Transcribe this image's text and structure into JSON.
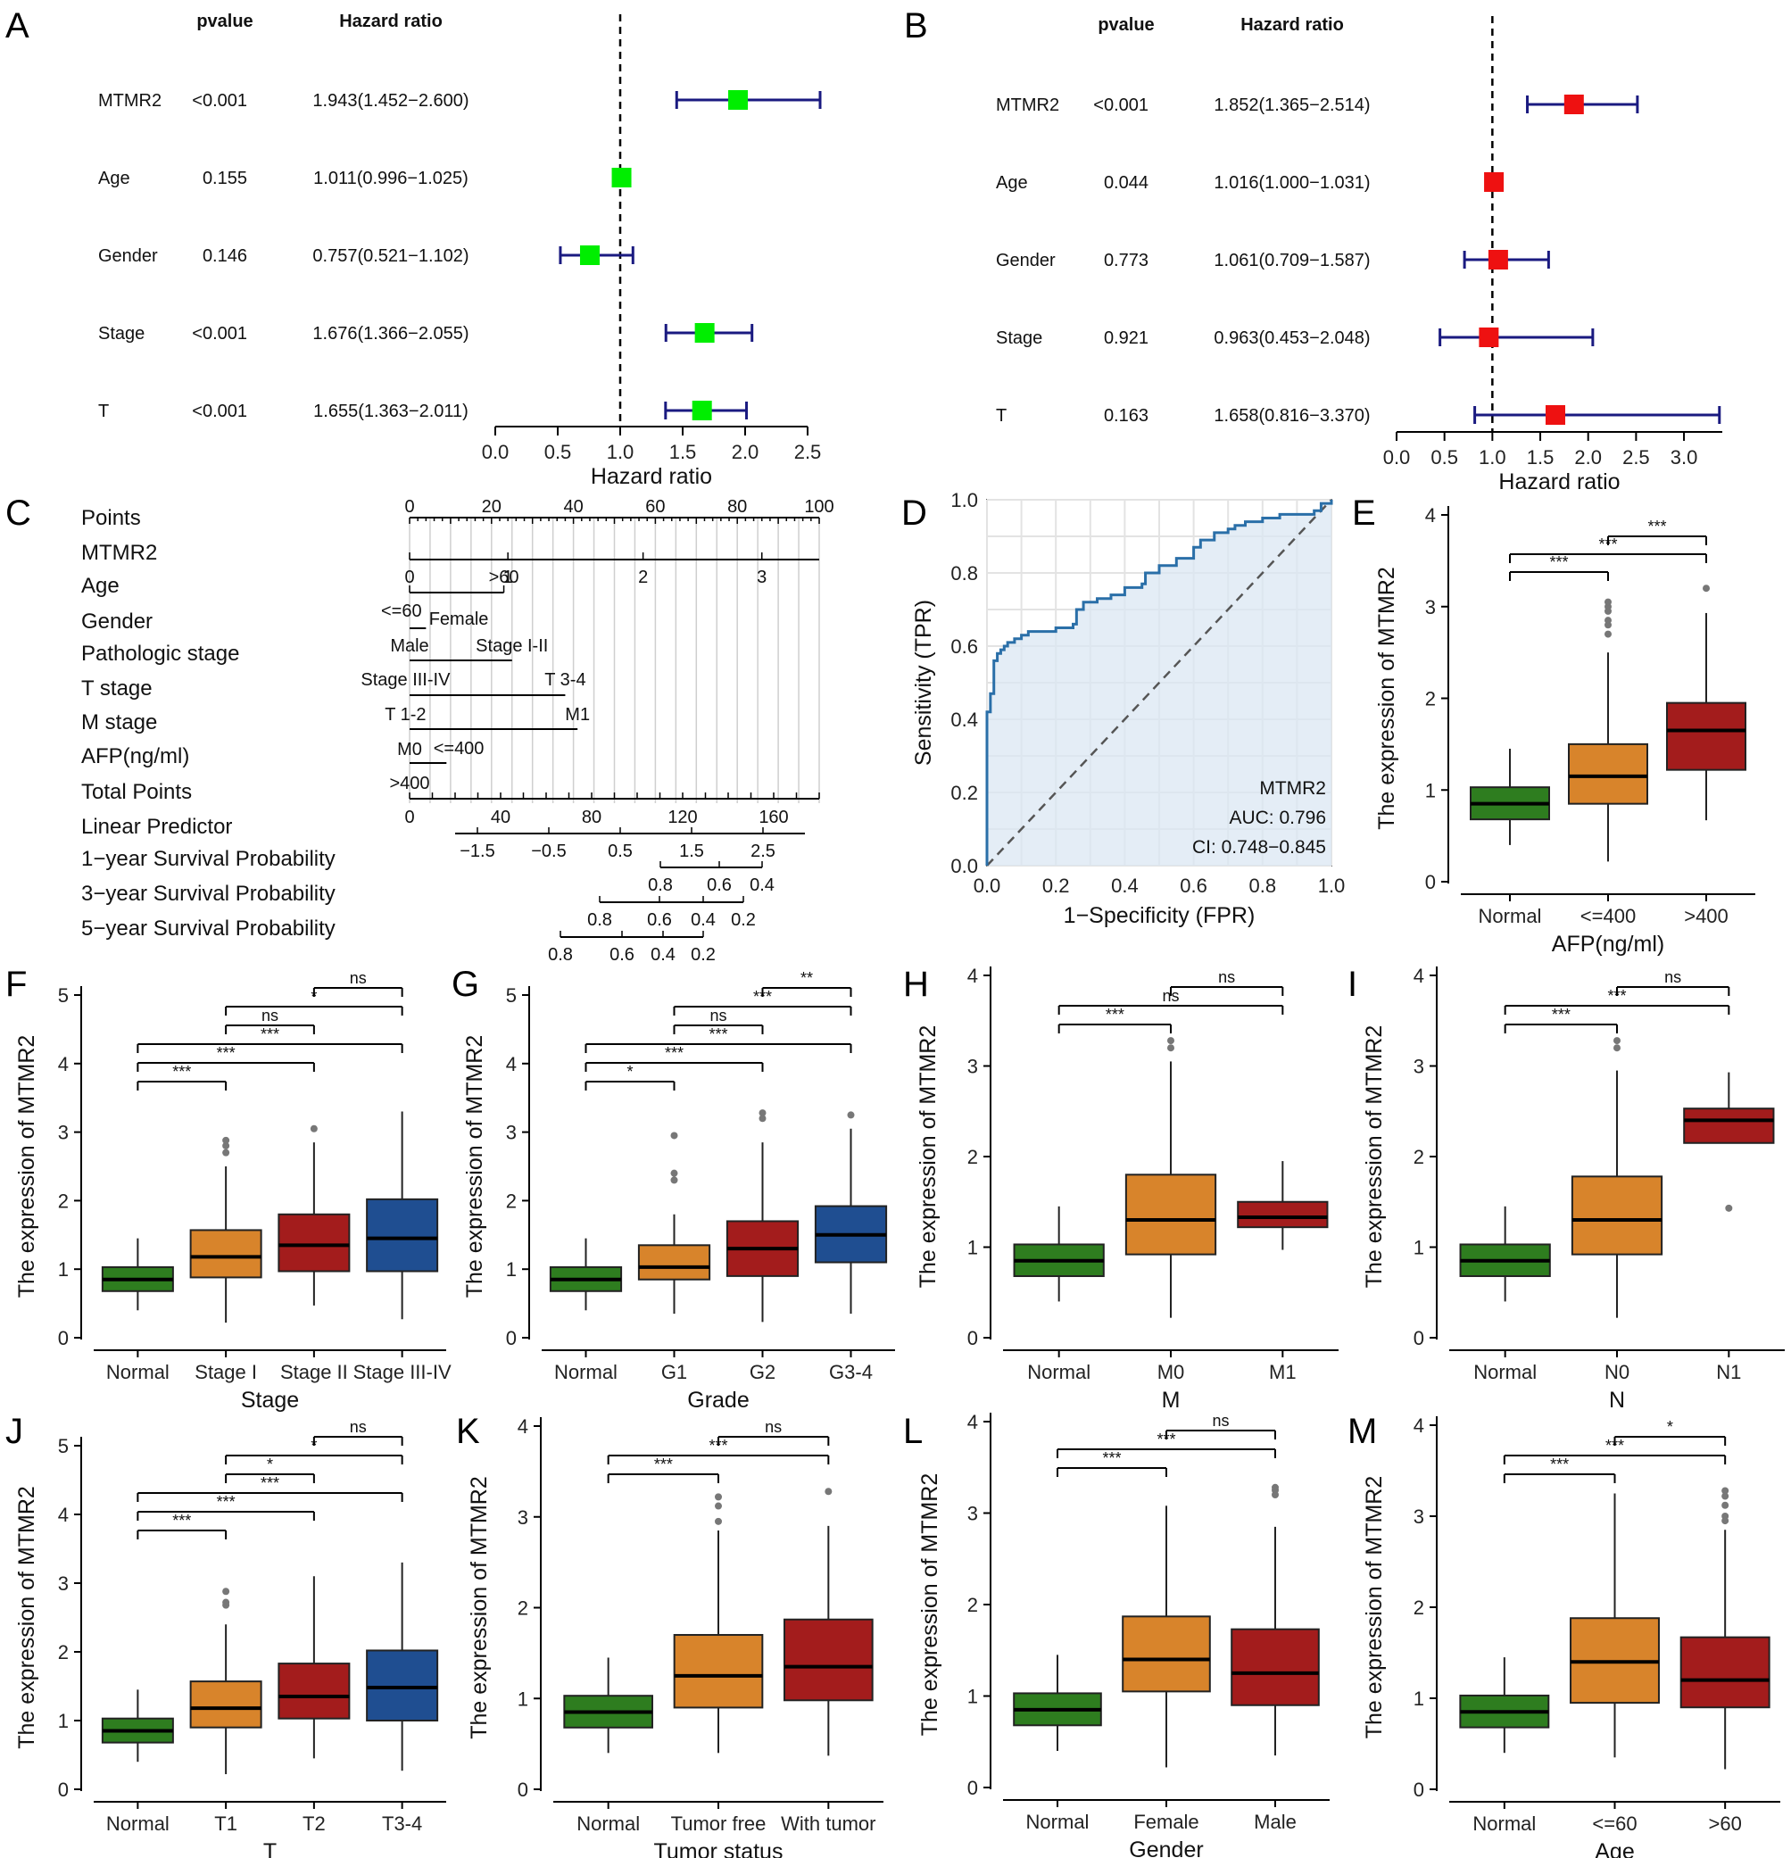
{
  "colors": {
    "forest_marker": "#00ee00",
    "forest_marker_b": "#ee1111",
    "ci_line": "#1a1a80",
    "box_normal": "#2e7d1f",
    "box_orange": "#d8842b",
    "box_red": "#a31c1c",
    "box_blue": "#1f4e91",
    "roc_line": "#2a6fa8",
    "roc_fill": "#dbe7f3"
  },
  "chart_data": [
    {
      "panel": "A",
      "type": "forest",
      "header": {
        "pvalue": "pvalue",
        "hr": "Hazard ratio"
      },
      "xlabel": "Hazard ratio",
      "ticks": [
        0.0,
        0.5,
        1.0,
        1.5,
        2.0,
        2.5
      ],
      "tick_labels": [
        "0.0",
        "0.5",
        "1.0",
        "1.5",
        "2.0",
        "2.5"
      ],
      "xlim": [
        0,
        2.5
      ],
      "ref": 1.0,
      "rows": [
        {
          "name": "MTMR2",
          "p": "<0.001",
          "text": "1.943(1.452−2.600)",
          "hr": 1.943,
          "lo": 1.452,
          "hi": 2.6
        },
        {
          "name": "Age",
          "p": "0.155",
          "text": "1.011(0.996−1.025)",
          "hr": 1.011,
          "lo": 0.996,
          "hi": 1.025
        },
        {
          "name": "Gender",
          "p": "0.146",
          "text": "0.757(0.521−1.102)",
          "hr": 0.757,
          "lo": 0.521,
          "hi": 1.102
        },
        {
          "name": "Stage",
          "p": "<0.001",
          "text": "1.676(1.366−2.055)",
          "hr": 1.676,
          "lo": 1.366,
          "hi": 2.055
        },
        {
          "name": "T",
          "p": "<0.001",
          "text": "1.655(1.363−2.011)",
          "hr": 1.655,
          "lo": 1.363,
          "hi": 2.011
        }
      ]
    },
    {
      "panel": "B",
      "type": "forest",
      "header": {
        "pvalue": "pvalue",
        "hr": "Hazard ratio"
      },
      "xlabel": "Hazard ratio",
      "ticks": [
        0.0,
        0.5,
        1.0,
        1.5,
        2.0,
        2.5,
        3.0
      ],
      "tick_labels": [
        "0.0",
        "0.5",
        "1.0",
        "1.5",
        "2.0",
        "2.5",
        "3.0"
      ],
      "xlim": [
        0,
        3.4
      ],
      "ref": 1.0,
      "rows": [
        {
          "name": "MTMR2",
          "p": "<0.001",
          "text": "1.852(1.365−2.514)",
          "hr": 1.852,
          "lo": 1.365,
          "hi": 2.514
        },
        {
          "name": "Age",
          "p": "0.044",
          "text": "1.016(1.000−1.031)",
          "hr": 1.016,
          "lo": 1.0,
          "hi": 1.031
        },
        {
          "name": "Gender",
          "p": "0.773",
          "text": "1.061(0.709−1.587)",
          "hr": 1.061,
          "lo": 0.709,
          "hi": 1.587
        },
        {
          "name": "Stage",
          "p": "0.921",
          "text": "0.963(0.453−2.048)",
          "hr": 0.963,
          "lo": 0.453,
          "hi": 2.048
        },
        {
          "name": "T",
          "p": "0.163",
          "text": "1.658(0.816−3.370)",
          "hr": 1.658,
          "lo": 0.816,
          "hi": 3.37
        }
      ]
    },
    {
      "panel": "C",
      "type": "nomogram",
      "rows": [
        "Points",
        "MTMR2",
        "Age",
        "Gender",
        "Pathologic stage",
        "T stage",
        "M stage",
        "AFP(ng/ml)",
        "Total Points",
        "Linear Predictor",
        "1−year Survival Probability",
        "3−year Survival Probability",
        "5−year Survival Probability"
      ],
      "points_ticks": [
        "0",
        "20",
        "40",
        "60",
        "80",
        "100"
      ],
      "mtmr2_ticks": [
        "0",
        "1",
        "2",
        "3"
      ],
      "age_labels": [
        ">60",
        "<=60"
      ],
      "gender_labels": [
        "Female",
        "Male"
      ],
      "stage_labels": [
        "Stage I-II",
        "Stage III-IV"
      ],
      "t_labels": [
        "T 3-4",
        "T 1-2"
      ],
      "m_labels": [
        "M1",
        "M0"
      ],
      "afp_labels": [
        "<=400",
        ">400"
      ],
      "total_ticks": [
        "0",
        "40",
        "80",
        "120",
        "160"
      ],
      "lp_ticks": [
        "−1.5",
        "−0.5",
        "0.5",
        "1.5",
        "2.5"
      ],
      "surv1_ticks": [
        "0.8",
        "0.6",
        "0.4"
      ],
      "surv3_ticks": [
        "0.8",
        "0.6",
        "0.4",
        "0.2"
      ],
      "surv5_ticks": [
        "0.8",
        "0.6",
        "0.4",
        "0.2"
      ]
    },
    {
      "panel": "D",
      "type": "roc",
      "xlabel": "1−Specificity (FPR)",
      "ylabel": "Sensitivity (TPR)",
      "ticks": [
        "0.0",
        "0.2",
        "0.4",
        "0.6",
        "0.8",
        "1.0"
      ],
      "label": "MTMR2",
      "auc": "AUC: 0.796",
      "ci": "CI: 0.748−0.845",
      "fpr": [
        0,
        0,
        0.01,
        0.01,
        0.02,
        0.02,
        0.03,
        0.04,
        0.05,
        0.06,
        0.08,
        0.1,
        0.12,
        0.15,
        0.2,
        0.25,
        0.26,
        0.28,
        0.32,
        0.36,
        0.4,
        0.45,
        0.46,
        0.5,
        0.55,
        0.6,
        0.62,
        0.66,
        0.7,
        0.72,
        0.75,
        0.8,
        0.85,
        0.9,
        0.95,
        0.97,
        1.0
      ],
      "tpr": [
        0,
        0.42,
        0.42,
        0.47,
        0.52,
        0.56,
        0.58,
        0.59,
        0.6,
        0.61,
        0.62,
        0.63,
        0.64,
        0.64,
        0.65,
        0.66,
        0.7,
        0.72,
        0.73,
        0.74,
        0.76,
        0.77,
        0.8,
        0.82,
        0.84,
        0.87,
        0.89,
        0.91,
        0.92,
        0.93,
        0.94,
        0.95,
        0.96,
        0.96,
        0.97,
        0.99,
        1.0
      ]
    },
    {
      "panel": "E",
      "type": "box",
      "xlabel": "AFP(ng/ml)",
      "ylabel": "The expression of MTMR2",
      "ylim": [
        0,
        4
      ],
      "yticks": [
        0,
        1,
        2,
        3,
        4
      ],
      "categories": [
        "Normal",
        "<=400",
        ">400"
      ],
      "boxes": [
        {
          "wlo": 0.4,
          "q1": 0.68,
          "med": 0.85,
          "q3": 1.03,
          "whi": 1.45,
          "out": []
        },
        {
          "wlo": 0.22,
          "q1": 0.85,
          "med": 1.15,
          "q3": 1.5,
          "whi": 2.5,
          "out": [
            2.7,
            2.8,
            2.85,
            2.95,
            3.0,
            3.05
          ]
        },
        {
          "wlo": 0.67,
          "q1": 1.22,
          "med": 1.65,
          "q3": 1.95,
          "whi": 2.93,
          "out": [
            3.2
          ]
        }
      ],
      "sig": [
        {
          "a": 0,
          "b": 1,
          "label": "***"
        },
        {
          "a": 0,
          "b": 2,
          "label": "***"
        },
        {
          "a": 1,
          "b": 2,
          "label": "***"
        }
      ]
    },
    {
      "panel": "F",
      "type": "box",
      "xlabel": "Stage",
      "ylabel": "The expression of MTMR2",
      "ylim": [
        0,
        5
      ],
      "yticks": [
        0,
        1,
        2,
        3,
        4,
        5
      ],
      "categories": [
        "Normal",
        "Stage I",
        "Stage II",
        "Stage III-IV"
      ],
      "boxes": [
        {
          "wlo": 0.4,
          "q1": 0.68,
          "med": 0.85,
          "q3": 1.03,
          "whi": 1.45,
          "out": []
        },
        {
          "wlo": 0.22,
          "q1": 0.88,
          "med": 1.18,
          "q3": 1.57,
          "whi": 2.5,
          "out": [
            2.7,
            2.8,
            2.88
          ]
        },
        {
          "wlo": 0.47,
          "q1": 0.97,
          "med": 1.35,
          "q3": 1.8,
          "whi": 2.85,
          "out": [
            3.05
          ]
        },
        {
          "wlo": 0.27,
          "q1": 0.97,
          "med": 1.45,
          "q3": 2.02,
          "whi": 3.3,
          "out": []
        }
      ],
      "sig": [
        {
          "a": 0,
          "b": 1,
          "label": "***"
        },
        {
          "a": 0,
          "b": 2,
          "label": "***"
        },
        {
          "a": 0,
          "b": 3,
          "label": "***"
        },
        {
          "a": 1,
          "b": 2,
          "label": "ns"
        },
        {
          "a": 1,
          "b": 3,
          "label": "*"
        },
        {
          "a": 2,
          "b": 3,
          "label": "ns"
        }
      ]
    },
    {
      "panel": "G",
      "type": "box",
      "xlabel": "Grade",
      "ylabel": "The expression of MTMR2",
      "ylim": [
        0,
        5
      ],
      "yticks": [
        0,
        1,
        2,
        3,
        4,
        5
      ],
      "categories": [
        "Normal",
        "G1",
        "G2",
        "G3-4"
      ],
      "boxes": [
        {
          "wlo": 0.4,
          "q1": 0.68,
          "med": 0.85,
          "q3": 1.03,
          "whi": 1.45,
          "out": []
        },
        {
          "wlo": 0.35,
          "q1": 0.85,
          "med": 1.03,
          "q3": 1.35,
          "whi": 1.8,
          "out": [
            2.3,
            2.4,
            2.95
          ]
        },
        {
          "wlo": 0.23,
          "q1": 0.9,
          "med": 1.3,
          "q3": 1.7,
          "whi": 2.85,
          "out": [
            3.2,
            3.28
          ]
        },
        {
          "wlo": 0.35,
          "q1": 1.1,
          "med": 1.5,
          "q3": 1.92,
          "whi": 3.05,
          "out": [
            3.25
          ]
        }
      ],
      "sig": [
        {
          "a": 0,
          "b": 1,
          "label": "*"
        },
        {
          "a": 0,
          "b": 2,
          "label": "***"
        },
        {
          "a": 0,
          "b": 3,
          "label": "***"
        },
        {
          "a": 1,
          "b": 2,
          "label": "ns"
        },
        {
          "a": 1,
          "b": 3,
          "label": "***"
        },
        {
          "a": 2,
          "b": 3,
          "label": "**"
        }
      ]
    },
    {
      "panel": "H",
      "type": "box",
      "xlabel": "M",
      "ylabel": "The expression of MTMR2",
      "ylim": [
        0,
        4
      ],
      "yticks": [
        0,
        1,
        2,
        3,
        4
      ],
      "categories": [
        "Normal",
        "M0",
        "M1"
      ],
      "boxes": [
        {
          "wlo": 0.4,
          "q1": 0.68,
          "med": 0.85,
          "q3": 1.03,
          "whi": 1.45,
          "out": []
        },
        {
          "wlo": 0.22,
          "q1": 0.92,
          "med": 1.3,
          "q3": 1.8,
          "whi": 3.05,
          "out": [
            3.2,
            3.28
          ]
        },
        {
          "wlo": 0.97,
          "q1": 1.22,
          "med": 1.33,
          "q3": 1.5,
          "whi": 1.95,
          "out": []
        }
      ],
      "sig": [
        {
          "a": 0,
          "b": 1,
          "label": "***"
        },
        {
          "a": 0,
          "b": 2,
          "label": "ns"
        },
        {
          "a": 1,
          "b": 2,
          "label": "ns"
        }
      ]
    },
    {
      "panel": "I",
      "type": "box",
      "xlabel": "N",
      "ylabel": "The expression of MTMR2",
      "ylim": [
        0,
        4
      ],
      "yticks": [
        0,
        1,
        2,
        3,
        4
      ],
      "categories": [
        "Normal",
        "N0",
        "N1"
      ],
      "boxes": [
        {
          "wlo": 0.4,
          "q1": 0.68,
          "med": 0.85,
          "q3": 1.03,
          "whi": 1.45,
          "out": []
        },
        {
          "wlo": 0.22,
          "q1": 0.92,
          "med": 1.3,
          "q3": 1.78,
          "whi": 2.95,
          "out": [
            3.2,
            3.28
          ]
        },
        {
          "wlo": 2.15,
          "q1": 2.15,
          "med": 2.4,
          "q3": 2.53,
          "whi": 2.93,
          "out": [
            1.43
          ]
        }
      ],
      "sig": [
        {
          "a": 0,
          "b": 1,
          "label": "***"
        },
        {
          "a": 0,
          "b": 2,
          "label": "***"
        },
        {
          "a": 1,
          "b": 2,
          "label": "ns"
        }
      ]
    },
    {
      "panel": "J",
      "type": "box",
      "xlabel": "T",
      "ylabel": "The expression of MTMR2",
      "ylim": [
        0,
        5
      ],
      "yticks": [
        0,
        1,
        2,
        3,
        4,
        5
      ],
      "categories": [
        "Normal",
        "T1",
        "T2",
        "T3-4"
      ],
      "boxes": [
        {
          "wlo": 0.4,
          "q1": 0.68,
          "med": 0.85,
          "q3": 1.03,
          "whi": 1.45,
          "out": []
        },
        {
          "wlo": 0.22,
          "q1": 0.9,
          "med": 1.18,
          "q3": 1.57,
          "whi": 2.4,
          "out": [
            2.68,
            2.72,
            2.88
          ]
        },
        {
          "wlo": 0.45,
          "q1": 1.03,
          "med": 1.35,
          "q3": 1.83,
          "whi": 3.1,
          "out": []
        },
        {
          "wlo": 0.27,
          "q1": 1.0,
          "med": 1.48,
          "q3": 2.02,
          "whi": 3.3,
          "out": []
        }
      ],
      "sig": [
        {
          "a": 0,
          "b": 1,
          "label": "***"
        },
        {
          "a": 0,
          "b": 2,
          "label": "***"
        },
        {
          "a": 0,
          "b": 3,
          "label": "***"
        },
        {
          "a": 1,
          "b": 2,
          "label": "*"
        },
        {
          "a": 1,
          "b": 3,
          "label": "*"
        },
        {
          "a": 2,
          "b": 3,
          "label": "ns"
        }
      ]
    },
    {
      "panel": "K",
      "type": "box",
      "xlabel": "Tumor status",
      "ylabel": "The expression of MTMR2",
      "ylim": [
        0,
        4
      ],
      "yticks": [
        0,
        1,
        2,
        3,
        4
      ],
      "categories": [
        "Normal",
        "Tumor free",
        "With tumor"
      ],
      "boxes": [
        {
          "wlo": 0.4,
          "q1": 0.68,
          "med": 0.85,
          "q3": 1.03,
          "whi": 1.45,
          "out": []
        },
        {
          "wlo": 0.4,
          "q1": 0.9,
          "med": 1.25,
          "q3": 1.7,
          "whi": 2.85,
          "out": [
            2.95,
            3.12,
            3.22
          ]
        },
        {
          "wlo": 0.37,
          "q1": 0.98,
          "med": 1.35,
          "q3": 1.87,
          "whi": 2.9,
          "out": [
            3.28
          ]
        }
      ],
      "sig": [
        {
          "a": 0,
          "b": 1,
          "label": "***"
        },
        {
          "a": 0,
          "b": 2,
          "label": "***"
        },
        {
          "a": 1,
          "b": 2,
          "label": "ns"
        }
      ]
    },
    {
      "panel": "L",
      "type": "box",
      "xlabel": "Gender",
      "ylabel": "The expression of MTMR2",
      "ylim": [
        0,
        4
      ],
      "yticks": [
        0,
        1,
        2,
        3,
        4
      ],
      "categories": [
        "Normal",
        "Female",
        "Male"
      ],
      "boxes": [
        {
          "wlo": 0.4,
          "q1": 0.68,
          "med": 0.85,
          "q3": 1.03,
          "whi": 1.45,
          "out": []
        },
        {
          "wlo": 0.22,
          "q1": 1.05,
          "med": 1.4,
          "q3": 1.87,
          "whi": 3.08,
          "out": []
        },
        {
          "wlo": 0.35,
          "q1": 0.9,
          "med": 1.25,
          "q3": 1.73,
          "whi": 2.85,
          "out": [
            3.2,
            3.25,
            3.28
          ]
        }
      ],
      "sig": [
        {
          "a": 0,
          "b": 1,
          "label": "***"
        },
        {
          "a": 0,
          "b": 2,
          "label": "***"
        },
        {
          "a": 1,
          "b": 2,
          "label": "ns"
        }
      ]
    },
    {
      "panel": "M",
      "type": "box",
      "xlabel": "Age",
      "ylabel": "The expression of MTMR2",
      "ylim": [
        0,
        4
      ],
      "yticks": [
        0,
        1,
        2,
        3,
        4
      ],
      "categories": [
        "Normal",
        "<=60",
        ">60"
      ],
      "boxes": [
        {
          "wlo": 0.4,
          "q1": 0.68,
          "med": 0.85,
          "q3": 1.03,
          "whi": 1.45,
          "out": []
        },
        {
          "wlo": 0.35,
          "q1": 0.95,
          "med": 1.4,
          "q3": 1.88,
          "whi": 3.25,
          "out": []
        },
        {
          "wlo": 0.22,
          "q1": 0.9,
          "med": 1.2,
          "q3": 1.67,
          "whi": 2.85,
          "out": [
            2.95,
            3.0,
            3.12,
            3.22,
            3.28
          ]
        }
      ],
      "sig": [
        {
          "a": 0,
          "b": 1,
          "label": "***"
        },
        {
          "a": 0,
          "b": 2,
          "label": "***"
        },
        {
          "a": 1,
          "b": 2,
          "label": "*"
        }
      ]
    }
  ]
}
